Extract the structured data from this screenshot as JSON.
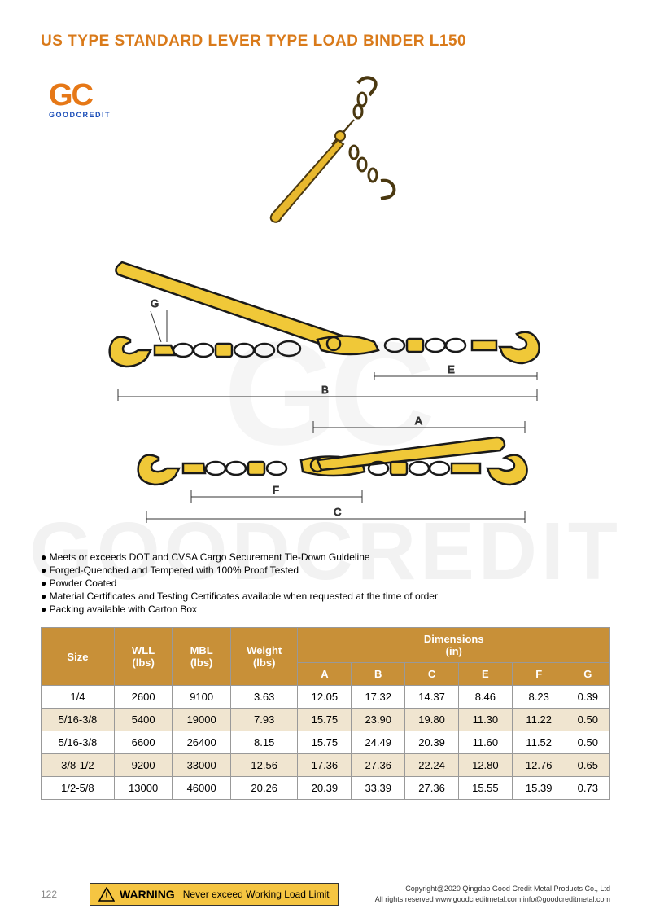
{
  "title": "US TYPE STANDARD LEVER TYPE LOAD BINDER L150",
  "logo": {
    "main": "GC",
    "sub": "GOODCREDIT"
  },
  "watermark": {
    "gc": "GC",
    "text": "GOODCREDIT"
  },
  "product_color": "#e8b82e",
  "product_outline": "#4a3810",
  "diagram": {
    "fill": "#f0c838",
    "stroke": "#1a1a1a",
    "dim_labels": [
      "G",
      "E",
      "B",
      "A",
      "F",
      "C"
    ]
  },
  "bullets": [
    "Meets or exceeds DOT and CVSA Cargo Securement Tie-Down Guldeline",
    "Forged-Quenched and Tempered with 100% Proof Tested",
    "Powder Coated",
    "Material Certificates and Testing Certificates available when requested at the time of order",
    "Packing available with Carton Box"
  ],
  "table": {
    "header_bg": "#c89038",
    "header_fg": "#ffffff",
    "row_alt_bg": "#f0e5d0",
    "columns_main": [
      "Size",
      "WLL\n(lbs)",
      "MBL\n(lbs)",
      "Weight\n(lbs)"
    ],
    "dim_header": "Dimensions\n(in)",
    "dim_cols": [
      "A",
      "B",
      "C",
      "E",
      "F",
      "G"
    ],
    "rows": [
      [
        "1/4",
        "2600",
        "9100",
        "3.63",
        "12.05",
        "17.32",
        "14.37",
        "8.46",
        "8.23",
        "0.39"
      ],
      [
        "5/16-3/8",
        "5400",
        "19000",
        "7.93",
        "15.75",
        "23.90",
        "19.80",
        "11.30",
        "11.22",
        "0.50"
      ],
      [
        "5/16-3/8",
        "6600",
        "26400",
        "8.15",
        "15.75",
        "24.49",
        "20.39",
        "11.60",
        "11.52",
        "0.50"
      ],
      [
        "3/8-1/2",
        "9200",
        "33000",
        "12.56",
        "17.36",
        "27.36",
        "22.24",
        "12.80",
        "12.76",
        "0.65"
      ],
      [
        "1/2-5/8",
        "13000",
        "46000",
        "20.26",
        "20.39",
        "33.39",
        "27.36",
        "15.55",
        "15.39",
        "0.73"
      ]
    ]
  },
  "footer": {
    "page_num": "122",
    "warning_label": "WARNING",
    "warning_text": "Never exceed Working Load Limit",
    "copyright1": "Copyright@2020 Qingdao Good Credit Metal Products Co., Ltd",
    "copyright2": "All rights reserved   www.goodcreditmetal.com   info@goodcreditmetal.com"
  }
}
